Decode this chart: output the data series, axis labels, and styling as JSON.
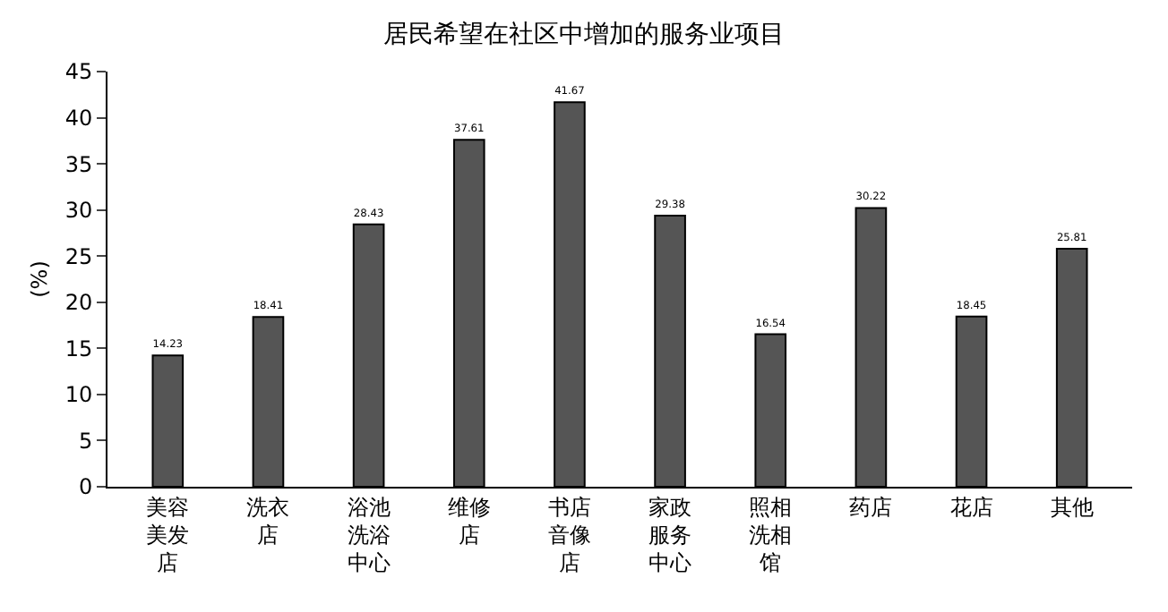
{
  "chart_data": {
    "type": "bar",
    "title": "居民希望在社区中增加的服务业项目",
    "ylabel": "(%)",
    "categories": [
      "美容美发店",
      "洗衣店",
      "浴池洗浴中心",
      "维修店",
      "书店音像店",
      "家政服务中心",
      "照相洗相馆",
      "药店",
      "花店",
      "其他"
    ],
    "values": [
      14.23,
      18.41,
      28.43,
      37.61,
      41.67,
      29.38,
      16.54,
      30.22,
      18.45,
      25.81
    ],
    "color": "#555555",
    "ylim": [
      0,
      45
    ],
    "yticks": [
      0,
      5,
      10,
      15,
      20,
      25,
      30,
      35,
      40,
      45
    ],
    "grid": false,
    "data_labels": true
  }
}
